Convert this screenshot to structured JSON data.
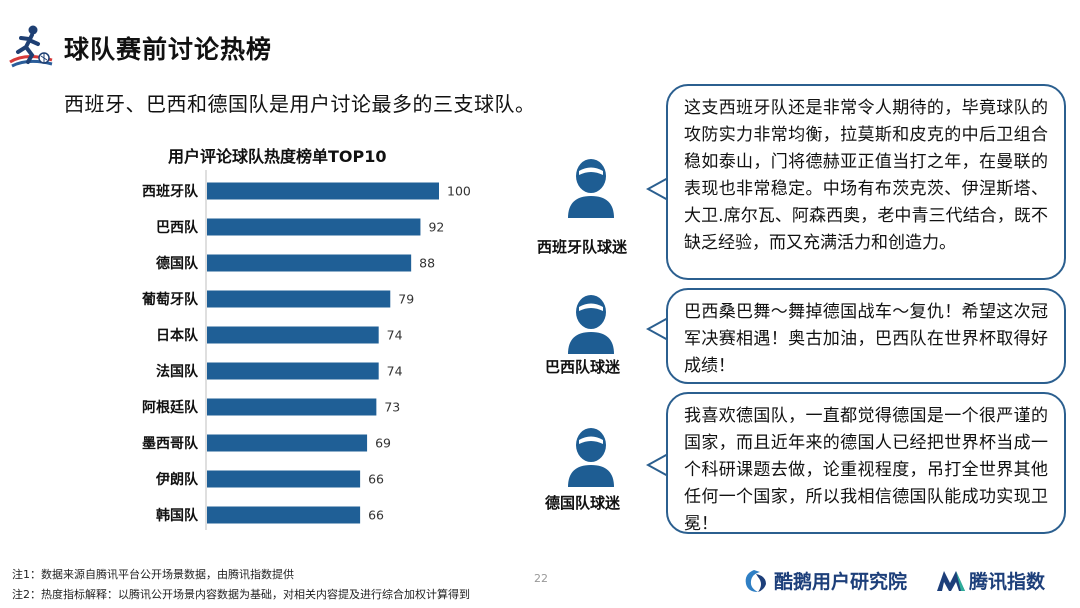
{
  "header": {
    "title": "球队赛前讨论热榜",
    "subtitle": "西班牙、巴西和德国队是用户讨论最多的三支球队。"
  },
  "chart_data": {
    "type": "bar",
    "orientation": "horizontal",
    "title": "用户评论球队热度榜单TOP10",
    "categories": [
      "西班牙队",
      "巴西队",
      "德国队",
      "葡萄牙队",
      "日本队",
      "法国队",
      "阿根廷队",
      "墨西哥队",
      "伊朗队",
      "韩国队"
    ],
    "values": [
      100,
      92,
      88,
      79,
      74,
      74,
      73,
      69,
      66,
      66
    ],
    "xlim": [
      0,
      100
    ],
    "grid": false,
    "legend": "none",
    "bar_color": "#1f5f96"
  },
  "personas": [
    {
      "label": "西班牙队球迷",
      "comment": "这支西班牙队还是非常令人期待的，毕竟球队的攻防实力非常均衡，拉莫斯和皮克的中后卫组合稳如泰山，门将德赫亚正值当打之年，在曼联的表现也非常稳定。中场有布茨克茨、伊涅斯塔、大卫.席尔瓦、阿森西奥，老中青三代结合，既不缺乏经验，而又充满活力和创造力。"
    },
    {
      "label": "巴西队球迷",
      "comment": "巴西桑巴舞～舞掉德国战车～复仇！希望这次冠军决赛相遇！奥古加油，巴西队在世界杯取得好成绩！"
    },
    {
      "label": "德国队球迷",
      "comment": "我喜欢德国队，一直都觉得德国是一个很严谨的国家，而且近年来的德国人已经把世界杯当成一个科研课题去做，论重视程度，吊打全世界其他任何一个国家，所以我相信德国队能成功实现卫冕！"
    }
  ],
  "footer": {
    "note1": "注1：数据来源自腾讯平台公开场景数据，由腾讯指数提供",
    "note2": "注2：热度指标解释：以腾讯公开场景内容数据为基础，对相关内容提及进行综合加权计算得到",
    "page_number": "22",
    "brand1": "酷鹅用户研究院",
    "brand2": "腾讯指数"
  },
  "colors": {
    "bar": "#1f5f96",
    "persona": "#1e5d93",
    "bubble_border": "#2b5f8f",
    "brand": "#1d3f7a"
  }
}
